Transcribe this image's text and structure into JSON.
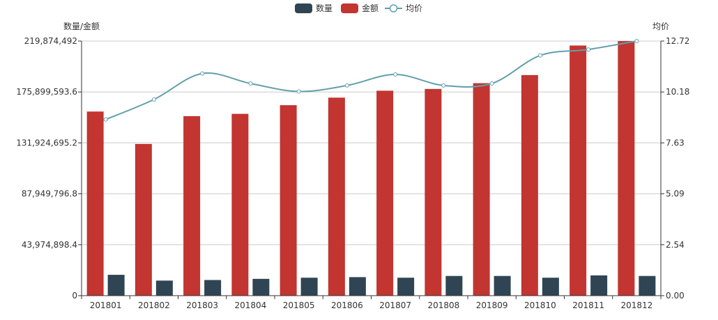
{
  "chart_data": {
    "type": "bar",
    "categories": [
      "201801",
      "201802",
      "201803",
      "201804",
      "201805",
      "201806",
      "201807",
      "201808",
      "201809",
      "201810",
      "201811",
      "201812"
    ],
    "series": [
      {
        "name": "数量",
        "type": "bar",
        "axis": "left",
        "color": "#2f4554",
        "values": [
          18000000,
          13000000,
          13500000,
          14500000,
          15500000,
          16000000,
          15500000,
          17000000,
          17000000,
          15500000,
          17500000,
          17000000
        ]
      },
      {
        "name": "金额",
        "type": "bar",
        "axis": "left",
        "color": "#c23531",
        "values": [
          159000000,
          131000000,
          155000000,
          157000000,
          164500000,
          171000000,
          177000000,
          178500000,
          183500000,
          190500000,
          216000000,
          219874492
        ]
      },
      {
        "name": "均价",
        "type": "line",
        "axis": "right",
        "color": "#61a0a8",
        "values": [
          8.8,
          9.8,
          11.1,
          10.6,
          10.2,
          10.5,
          11.05,
          10.5,
          10.6,
          12.0,
          12.3,
          12.72
        ]
      }
    ],
    "left_axis": {
      "name": "数量/金额",
      "ylim": [
        0,
        219874492
      ],
      "ticks": [
        "0",
        "43,974,898.4",
        "87,949,796.8",
        "131,924,695.2",
        "175,899,593.6",
        "219,874,492"
      ]
    },
    "right_axis": {
      "name": "均价",
      "ylim": [
        0,
        12.72
      ],
      "ticks": [
        "0.00",
        "2.54",
        "5.09",
        "7.63",
        "10.18",
        "12.72"
      ]
    },
    "legend": {
      "position": "top-center",
      "items": [
        "数量",
        "金额",
        "均价"
      ]
    },
    "grid": true
  }
}
